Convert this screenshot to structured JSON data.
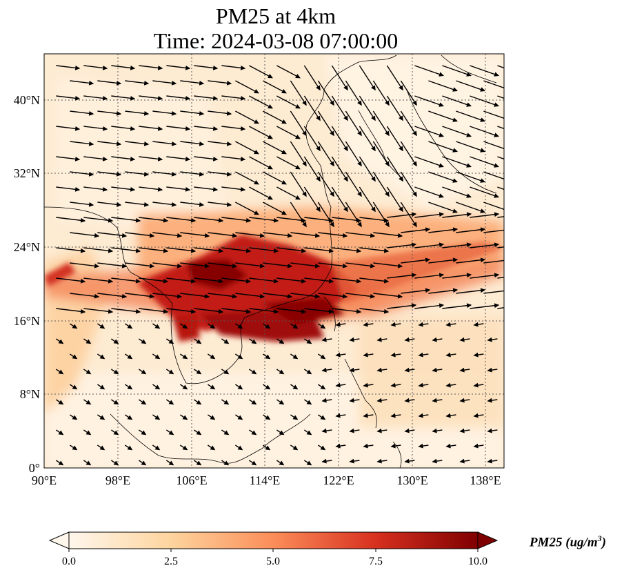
{
  "title": {
    "line1": "PM25 at 4km",
    "line2": "Time: 2024-03-08 07:00:00"
  },
  "map": {
    "type": "filled-contour-with-wind-vectors",
    "variable": "PM25",
    "extent": {
      "lon": [
        90,
        140
      ],
      "lat": [
        0,
        45
      ]
    },
    "gridlines": true,
    "lat_ticks": [
      "0°",
      "8°N",
      "16°N",
      "24°N",
      "32°N",
      "40°N"
    ],
    "lon_ticks": [
      "90°E",
      "98°E",
      "106°E",
      "114°E",
      "122°E",
      "130°E",
      "138°E"
    ],
    "colormap": "OrRd",
    "colors": {
      "low": "#fff7ec",
      "mid": "#fdbb84",
      "high": "#7f0000",
      "vectors": "#000000",
      "coast": "#000000"
    }
  },
  "colorbar": {
    "label_prefix": "PM25 (ug/m",
    "label_sup": "3",
    "label_suffix": ")",
    "ticks": [
      "0.0",
      "2.5",
      "5.0",
      "7.5",
      "10.0"
    ],
    "range": [
      0,
      10
    ],
    "extend": "both"
  }
}
